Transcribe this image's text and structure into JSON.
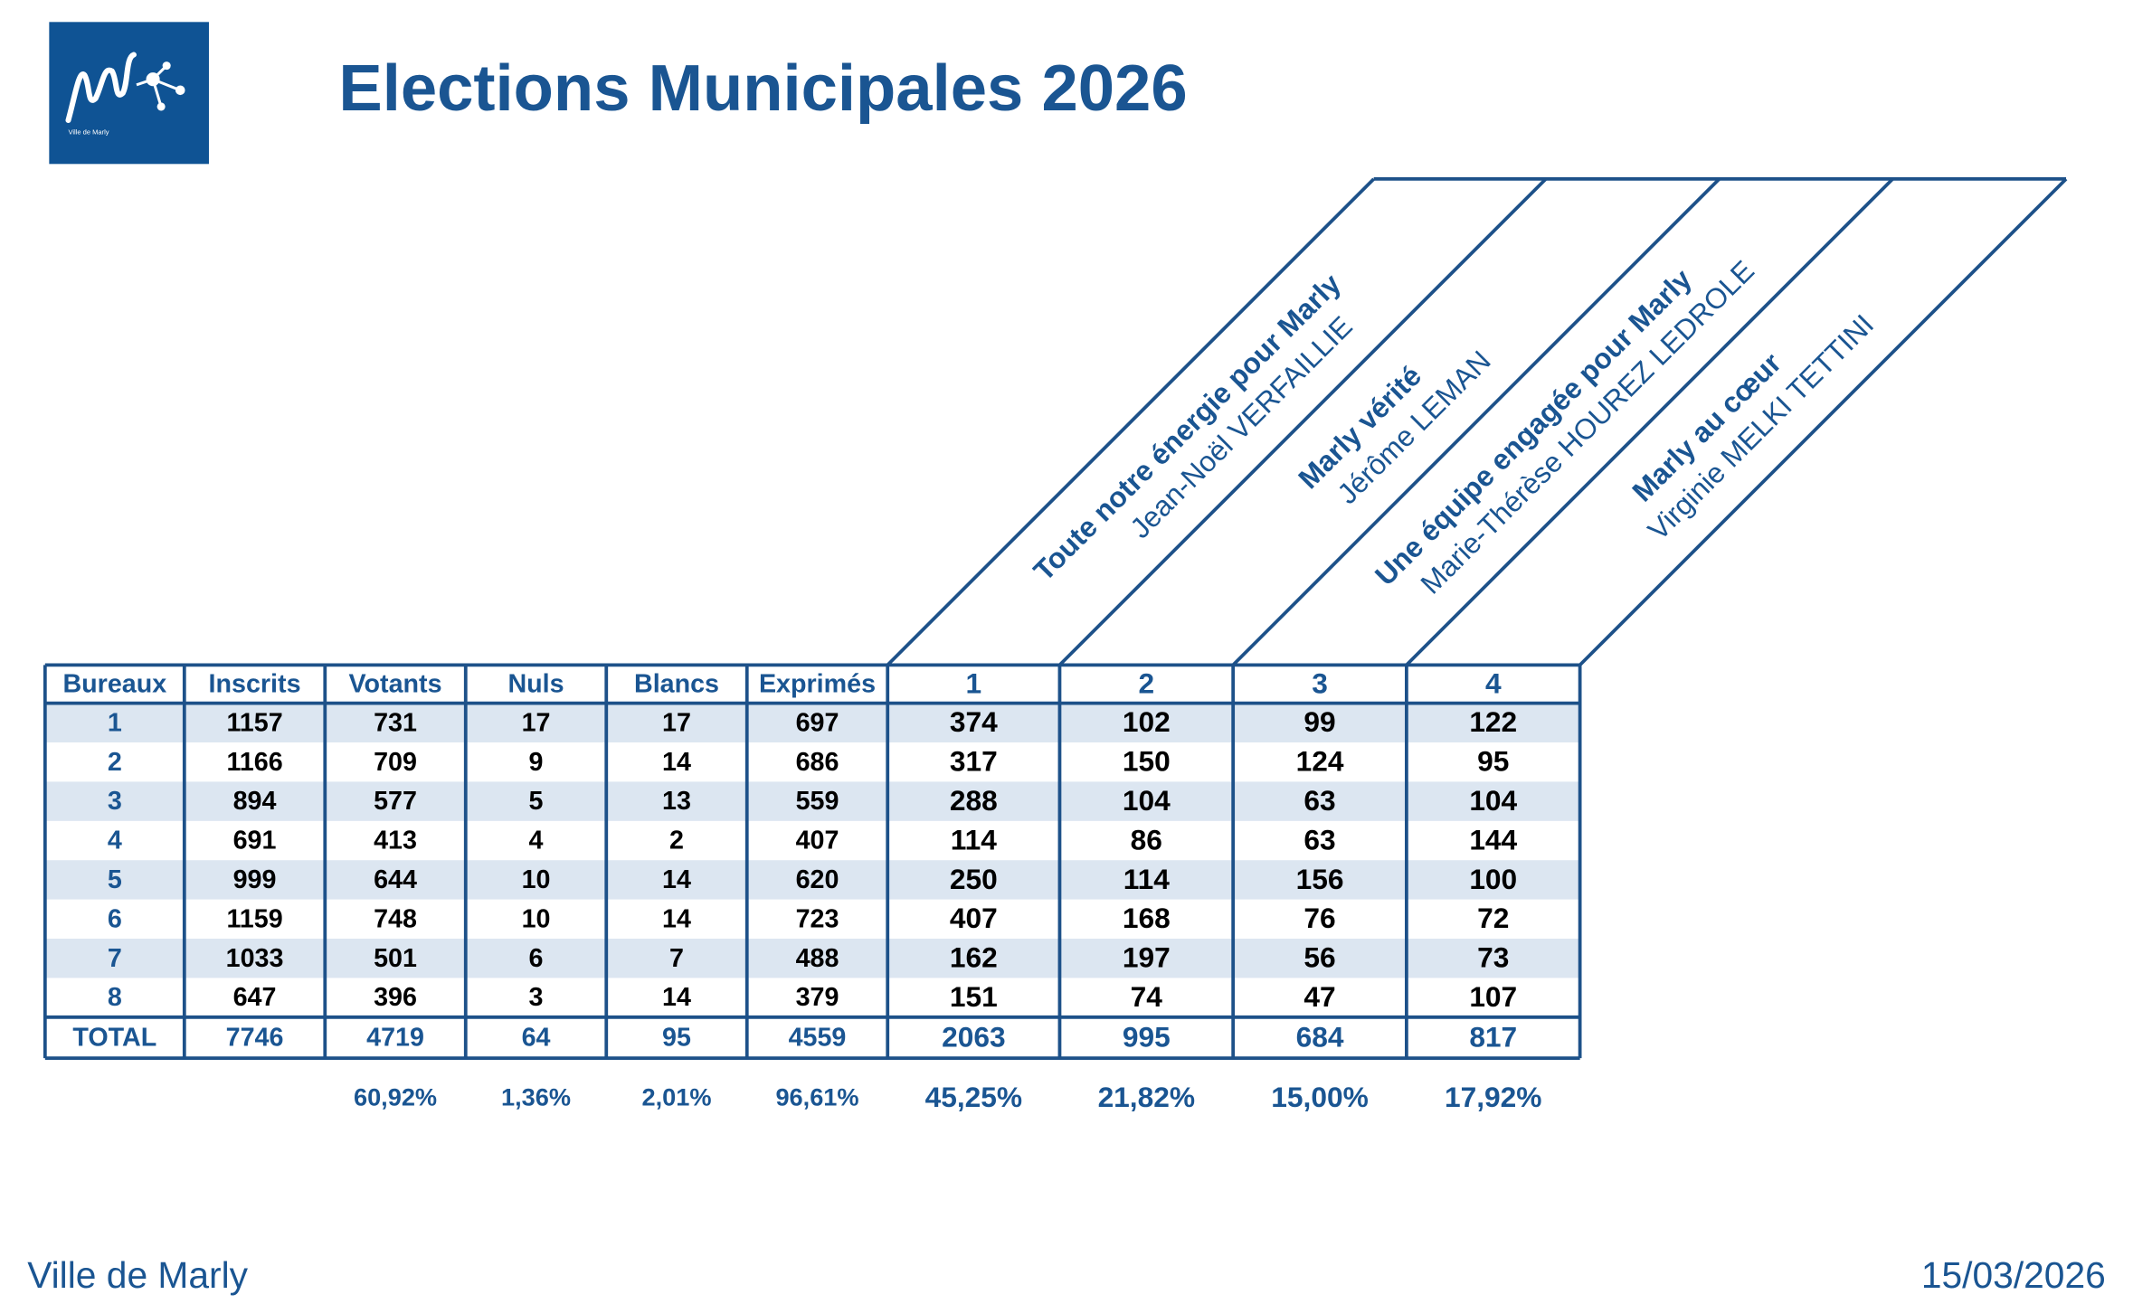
{
  "header": {
    "logo_caption": "Ville de Marly",
    "title": "Elections Municipales 2026"
  },
  "lists": [
    {
      "list": "Toute notre énergie pour Marly",
      "candidate": "Jean-Noël VERFAILLIE"
    },
    {
      "list": "Marly vérité",
      "candidate": "Jérôme LEMAN"
    },
    {
      "list": "Une équipe engagée pour Marly",
      "candidate": "Marie-Thérèse HOUREZ LEDROLE"
    },
    {
      "list": "Marly au cœur",
      "candidate": "Virginie MELKI TETTINI"
    }
  ],
  "table": {
    "columns": [
      "Bureaux",
      "Inscrits",
      "Votants",
      "Nuls",
      "Blancs",
      "Exprimés",
      "1",
      "2",
      "3",
      "4"
    ],
    "rows": [
      [
        1,
        1157,
        731,
        17,
        17,
        697,
        374,
        102,
        99,
        122
      ],
      [
        2,
        1166,
        709,
        9,
        14,
        686,
        317,
        150,
        124,
        95
      ],
      [
        3,
        894,
        577,
        5,
        13,
        559,
        288,
        104,
        63,
        104
      ],
      [
        4,
        691,
        413,
        4,
        2,
        407,
        114,
        86,
        63,
        144
      ],
      [
        5,
        999,
        644,
        10,
        14,
        620,
        250,
        114,
        156,
        100
      ],
      [
        6,
        1159,
        748,
        10,
        14,
        723,
        407,
        168,
        76,
        72
      ],
      [
        7,
        1033,
        501,
        6,
        7,
        488,
        162,
        197,
        56,
        73
      ],
      [
        8,
        647,
        396,
        3,
        14,
        379,
        151,
        74,
        47,
        107
      ]
    ],
    "total": [
      "TOTAL",
      7746,
      4719,
      64,
      95,
      4559,
      2063,
      995,
      684,
      817
    ],
    "percentages": [
      "60,92%",
      "1,36%",
      "2,01%",
      "96,61%",
      "45,25%",
      "21,82%",
      "15,00%",
      "17,92%"
    ]
  },
  "footer": {
    "left": "Ville de Marly",
    "right": "15/03/2026"
  }
}
